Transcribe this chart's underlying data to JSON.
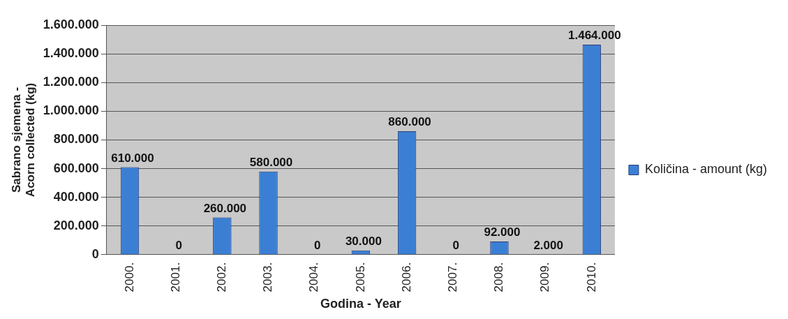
{
  "chart_data": {
    "type": "bar",
    "xlabel": "Godina - Year",
    "ylabel": "Sabrano sjemena - Acorn collected (kg)",
    "categories": [
      "2000.",
      "2001.",
      "2002.",
      "2003.",
      "2004.",
      "2005.",
      "2006.",
      "2007.",
      "2008.",
      "2009.",
      "2010."
    ],
    "series": [
      {
        "name": "Količina - amount (kg)",
        "color": "#3b7fd4",
        "values": [
          610000,
          0,
          260000,
          580000,
          0,
          30000,
          860000,
          0,
          92000,
          2000,
          1464000
        ],
        "value_labels": [
          "610.000",
          "0",
          "260.000",
          "580.000",
          "0",
          "30.000",
          "860.000",
          "0",
          "92.000",
          "2.000",
          "1.464.000"
        ]
      }
    ],
    "ylim": [
      0,
      1600000
    ],
    "yticks": [
      {
        "value": 0,
        "label": "0"
      },
      {
        "value": 200000,
        "label": "200.000"
      },
      {
        "value": 400000,
        "label": "400.000"
      },
      {
        "value": 600000,
        "label": "600.000"
      },
      {
        "value": 800000,
        "label": "800.000"
      },
      {
        "value": 1000000,
        "label": "1.000.000"
      },
      {
        "value": 1200000,
        "label": "1.200.000"
      },
      {
        "value": 1400000,
        "label": "1.400.000"
      },
      {
        "value": 1600000,
        "label": "1.600.000"
      }
    ],
    "grid": "y",
    "legend": "right"
  }
}
